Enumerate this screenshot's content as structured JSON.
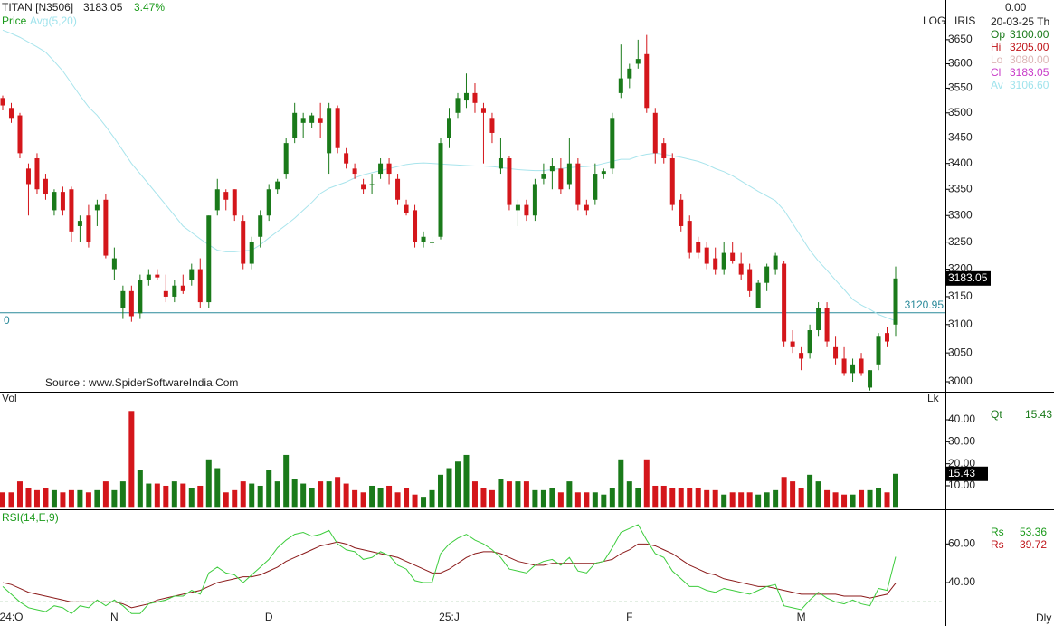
{
  "chart_data": [
    {
      "type": "candlestick",
      "title": "TITAN [N3506]",
      "change": "3.47%",
      "legend_price": "Price",
      "scale_label": "LOG",
      "indicator": "IRIS",
      "source": "Source : www.SpiderSoftwareIndia.Com",
      "log_scale": true,
      "up_color": "#1a7a1a",
      "down_color": "#d4161b",
      "ylim": [
        2984.5,
        3707
      ],
      "yticks": [
        3000,
        3050,
        3100,
        3150,
        3200,
        3250,
        3300,
        3350,
        3400,
        3450,
        3500,
        3550,
        3600,
        3650
      ],
      "hline": {
        "value": 3120.95,
        "note": "0",
        "color": "#2a8a9a"
      },
      "categories": [
        null,
        "24:O",
        null,
        null,
        null,
        null,
        null,
        null,
        null,
        null,
        null,
        null,
        null,
        "N",
        null,
        null,
        null,
        null,
        null,
        null,
        null,
        null,
        null,
        null,
        null,
        null,
        null,
        null,
        null,
        null,
        null,
        "D",
        null,
        null,
        null,
        null,
        null,
        null,
        null,
        null,
        null,
        null,
        null,
        null,
        null,
        null,
        null,
        null,
        null,
        null,
        null,
        null,
        "25:J",
        null,
        null,
        null,
        null,
        null,
        null,
        null,
        null,
        null,
        null,
        null,
        null,
        null,
        null,
        null,
        null,
        null,
        null,
        null,
        null,
        "F",
        null,
        null,
        null,
        null,
        null,
        null,
        null,
        null,
        null,
        null,
        null,
        null,
        null,
        null,
        null,
        null,
        null,
        null,
        null,
        "M",
        null,
        null,
        null,
        null,
        null,
        null,
        null,
        null,
        null,
        null,
        null
      ],
      "ohlc": [
        [
          3530,
          3535,
          3505,
          3515
        ],
        [
          3510,
          3520,
          3480,
          3490
        ],
        [
          3495,
          3500,
          3410,
          3420
        ],
        [
          3390,
          3400,
          3300,
          3360
        ],
        [
          3410,
          3420,
          3340,
          3350
        ],
        [
          3370,
          3380,
          3330,
          3340
        ],
        [
          3310,
          3350,
          3300,
          3345
        ],
        [
          3345,
          3355,
          3300,
          3310
        ],
        [
          3350,
          3355,
          3250,
          3270
        ],
        [
          3280,
          3300,
          3250,
          3290
        ],
        [
          3300,
          3320,
          3240,
          3250
        ],
        [
          3310,
          3330,
          3280,
          3320
        ],
        [
          3330,
          3340,
          3220,
          3225
        ],
        [
          3200,
          3240,
          3180,
          3220
        ],
        [
          3130,
          3170,
          3110,
          3160
        ],
        [
          3160,
          3170,
          3105,
          3115
        ],
        [
          3120,
          3190,
          3110,
          3180
        ],
        [
          3180,
          3200,
          3170,
          3190
        ],
        [
          3190,
          3200,
          3180,
          3185
        ],
        [
          3160,
          3190,
          3140,
          3150
        ],
        [
          3150,
          3180,
          3140,
          3170
        ],
        [
          3170,
          3190,
          3155,
          3160
        ],
        [
          3180,
          3210,
          3170,
          3200
        ],
        [
          3200,
          3220,
          3130,
          3140
        ],
        [
          3140,
          3300,
          3130,
          3300
        ],
        [
          3310,
          3370,
          3300,
          3350
        ],
        [
          3345,
          3350,
          3310,
          3330
        ],
        [
          3350,
          3350,
          3290,
          3300
        ],
        [
          3290,
          3300,
          3200,
          3210
        ],
        [
          3210,
          3260,
          3200,
          3250
        ],
        [
          3260,
          3310,
          3240,
          3300
        ],
        [
          3300,
          3360,
          3290,
          3350
        ],
        [
          3350,
          3370,
          3340,
          3365
        ],
        [
          3380,
          3450,
          3370,
          3440
        ],
        [
          3450,
          3520,
          3440,
          3500
        ],
        [
          3480,
          3500,
          3450,
          3490
        ],
        [
          3480,
          3500,
          3470,
          3495
        ],
        [
          3490,
          3520,
          3450,
          3480
        ],
        [
          3420,
          3520,
          3380,
          3510
        ],
        [
          3510,
          3515,
          3420,
          3430
        ],
        [
          3420,
          3430,
          3390,
          3400
        ],
        [
          3390,
          3400,
          3370,
          3380
        ],
        [
          3360,
          3370,
          3340,
          3350
        ],
        [
          3360,
          3380,
          3340,
          3360
        ],
        [
          3380,
          3410,
          3370,
          3400
        ],
        [
          3400,
          3410,
          3360,
          3380
        ],
        [
          3370,
          3380,
          3320,
          3330
        ],
        [
          3320,
          3330,
          3300,
          3305
        ],
        [
          3310,
          3320,
          3240,
          3250
        ],
        [
          3250,
          3270,
          3240,
          3260
        ],
        [
          3250,
          3260,
          3240,
          3250
        ],
        [
          3260,
          3450,
          3255,
          3440
        ],
        [
          3450,
          3510,
          3430,
          3490
        ],
        [
          3500,
          3540,
          3490,
          3530
        ],
        [
          3525,
          3580,
          3510,
          3540
        ],
        [
          3540,
          3560,
          3500,
          3520
        ],
        [
          3510,
          3520,
          3400,
          3500
        ],
        [
          3490,
          3500,
          3440,
          3460
        ],
        [
          3390,
          3450,
          3380,
          3410
        ],
        [
          3410,
          3415,
          3310,
          3320
        ],
        [
          3310,
          3330,
          3280,
          3320
        ],
        [
          3320,
          3330,
          3290,
          3300
        ],
        [
          3300,
          3370,
          3290,
          3360
        ],
        [
          3370,
          3400,
          3360,
          3380
        ],
        [
          3385,
          3410,
          3350,
          3395
        ],
        [
          3390,
          3410,
          3340,
          3350
        ],
        [
          3360,
          3450,
          3350,
          3400
        ],
        [
          3400,
          3410,
          3310,
          3320
        ],
        [
          3320,
          3330,
          3300,
          3310
        ],
        [
          3330,
          3400,
          3320,
          3380
        ],
        [
          3380,
          3390,
          3370,
          3385
        ],
        [
          3390,
          3500,
          3380,
          3490
        ],
        [
          3540,
          3640,
          3530,
          3570
        ],
        [
          3570,
          3600,
          3550,
          3590
        ],
        [
          3600,
          3650,
          3590,
          3610
        ],
        [
          3620,
          3660,
          3500,
          3510
        ],
        [
          3500,
          3510,
          3400,
          3420
        ],
        [
          3440,
          3450,
          3400,
          3410
        ],
        [
          3410,
          3420,
          3310,
          3320
        ],
        [
          3330,
          3340,
          3270,
          3280
        ],
        [
          3290,
          3300,
          3220,
          3230
        ],
        [
          3250,
          3260,
          3220,
          3230
        ],
        [
          3240,
          3250,
          3200,
          3210
        ],
        [
          3220,
          3240,
          3190,
          3200
        ],
        [
          3200,
          3250,
          3190,
          3230
        ],
        [
          3230,
          3250,
          3210,
          3215
        ],
        [
          3210,
          3230,
          3180,
          3190
        ],
        [
          3200,
          3210,
          3150,
          3160
        ],
        [
          3130,
          3180,
          3130,
          3175
        ],
        [
          3175,
          3210,
          3160,
          3205
        ],
        [
          3200,
          3230,
          3190,
          3225
        ],
        [
          3210,
          3215,
          3060,
          3070
        ],
        [
          3070,
          3090,
          3050,
          3060
        ],
        [
          3050,
          3060,
          3020,
          3040
        ],
        [
          3050,
          3100,
          3040,
          3090
        ],
        [
          3090,
          3140,
          3080,
          3130
        ],
        [
          3130,
          3140,
          3060,
          3070
        ],
        [
          3060,
          3080,
          3030,
          3040
        ],
        [
          3040,
          3060,
          3010,
          3015
        ],
        [
          3015,
          3040,
          3000,
          3030
        ],
        [
          3040,
          3050,
          3010,
          3015
        ],
        [
          2990,
          3020,
          2985,
          3020
        ],
        [
          3030,
          3085,
          3020,
          3080
        ],
        [
          3085,
          3095,
          3060,
          3070
        ],
        [
          3100,
          3205,
          3080,
          3183.05
        ]
      ],
      "series": [
        {
          "name": "Avg(5,20)",
          "color": "#a8e4ec",
          "values": [
            3670,
            3663,
            3655,
            3645,
            3635,
            3624,
            3605,
            3585,
            3560,
            3535,
            3512,
            3495,
            3473,
            3450,
            3425,
            3400,
            3380,
            3360,
            3340,
            3320,
            3300,
            3280,
            3268,
            3256,
            3245,
            3235,
            3232,
            3232,
            3234,
            3235,
            3245,
            3258,
            3270,
            3282,
            3295,
            3310,
            3325,
            3342,
            3352,
            3358,
            3364,
            3372,
            3378,
            3382,
            3386,
            3390,
            3394,
            3398,
            3400,
            3401,
            3400,
            3399,
            3398,
            3397,
            3396,
            3395,
            3395,
            3394,
            3392,
            3390,
            3388,
            3387,
            3386,
            3386,
            3388,
            3390,
            3392,
            3393,
            3394,
            3396,
            3400,
            3404,
            3408,
            3408,
            3414,
            3418,
            3420,
            3418,
            3415,
            3412,
            3408,
            3404,
            3398,
            3390,
            3384,
            3376,
            3366,
            3356,
            3346,
            3337,
            3328,
            3310,
            3285,
            3260,
            3235,
            3215,
            3198,
            3180,
            3163,
            3145,
            3135,
            3127,
            3118,
            3112,
            3106.6
          ]
        }
      ],
      "info": {
        "top": "0.00",
        "date": "20-03-25 Th",
        "rows": [
          {
            "name": "Op",
            "value": 3100,
            "label": "3100.00",
            "color": "#1a7a1a"
          },
          {
            "name": "Hi",
            "value": 3205,
            "label": "3205.00",
            "color": "#c0161b"
          },
          {
            "name": "Lo",
            "value": 3080,
            "label": "3080.00",
            "color": "#dcb4b4"
          },
          {
            "name": "Cl",
            "value": 3183.05,
            "label": "3183.05",
            "color": "#c83ac8"
          },
          {
            "name": "Av",
            "value": 3106.6,
            "label": "3106.60",
            "color": "#9fe3ec"
          }
        ]
      },
      "period": "Dly"
    },
    {
      "type": "bar",
      "title": "Vol",
      "unit": "Lk",
      "legend_name": "Qt",
      "ylim": [
        0,
        47
      ],
      "yticks": [
        {
          "value": 10,
          "label": "10.00"
        },
        {
          "value": 20,
          "label": "20.00"
        },
        {
          "value": 30,
          "label": "30.00"
        },
        {
          "value": 40,
          "label": "40.00"
        }
      ],
      "values": [
        7,
        7,
        12,
        9,
        8,
        9,
        8,
        7,
        8,
        8,
        7,
        8,
        12,
        8,
        12,
        44,
        17,
        11,
        11,
        10,
        12,
        11,
        9,
        10,
        22,
        18,
        7,
        8,
        12,
        11,
        10,
        17,
        12,
        24,
        13,
        11,
        9,
        12,
        12,
        14,
        11,
        8,
        7,
        10,
        9,
        10,
        7,
        9,
        6,
        5,
        8,
        15,
        18,
        21,
        24,
        12,
        9,
        8,
        13,
        12,
        12,
        12,
        8,
        8,
        9,
        7,
        12,
        7,
        7,
        7,
        6,
        9,
        22,
        12,
        9,
        22,
        10,
        10,
        9,
        9,
        9,
        9,
        8,
        8,
        6,
        7,
        7,
        7,
        6,
        7,
        8,
        14,
        12,
        9,
        15,
        12,
        8,
        7,
        6,
        6,
        8,
        8,
        9,
        7,
        15.43
      ]
    },
    {
      "type": "line",
      "title": "RSI(14,E,9)",
      "ylim": [
        18.5,
        77
      ],
      "ref_line": 30,
      "yticks": [
        {
          "value": 40,
          "label": "40.00"
        },
        {
          "value": 60,
          "label": "60.00"
        }
      ],
      "series": [
        {
          "name": "Rs",
          "color": "#3ccc3c",
          "values": [
            38,
            34,
            30,
            27,
            26,
            25,
            28,
            27,
            24,
            28,
            27,
            31,
            28,
            31,
            28,
            24,
            24,
            29,
            30,
            31,
            33,
            33,
            36,
            34,
            45,
            48,
            45,
            44,
            40,
            44,
            48,
            52,
            58,
            62,
            65,
            66,
            64,
            65,
            67,
            60,
            57,
            56,
            52,
            53,
            56,
            54,
            49,
            47,
            41,
            40,
            40,
            55,
            60,
            63,
            65,
            62,
            60,
            57,
            53,
            47,
            46,
            45,
            49,
            51,
            52,
            49,
            53,
            46,
            45,
            50,
            51,
            58,
            66,
            68,
            70,
            62,
            55,
            53,
            46,
            42,
            38,
            38,
            36,
            35,
            37,
            36,
            35,
            34,
            36,
            38,
            39,
            28,
            27,
            26,
            31,
            35,
            32,
            30,
            29,
            31,
            29,
            28,
            37,
            36,
            53.36
          ]
        },
        {
          "name": "Rs",
          "color": "#8b1a1a",
          "values": [
            40,
            39,
            37,
            35,
            34,
            33,
            32,
            31,
            30,
            30,
            30,
            30,
            30,
            30,
            29,
            27,
            28,
            29,
            31,
            32,
            33,
            34,
            35,
            36,
            38,
            40,
            41,
            42,
            43,
            43,
            44,
            46,
            48,
            51,
            53,
            55,
            57,
            59,
            60,
            61,
            60,
            58,
            57,
            56,
            55,
            54,
            53,
            51,
            49,
            47,
            45,
            45,
            47,
            50,
            53,
            55,
            56,
            56,
            55,
            53,
            51,
            50,
            49,
            49,
            50,
            50,
            50,
            50,
            50,
            50,
            51,
            52,
            55,
            57,
            60,
            60,
            59,
            57,
            55,
            52,
            49,
            47,
            45,
            44,
            42,
            41,
            40,
            39,
            38,
            38,
            37,
            36,
            35,
            34,
            34,
            34,
            34,
            34,
            33,
            33,
            33,
            32,
            33,
            34,
            39.72
          ]
        }
      ]
    }
  ]
}
